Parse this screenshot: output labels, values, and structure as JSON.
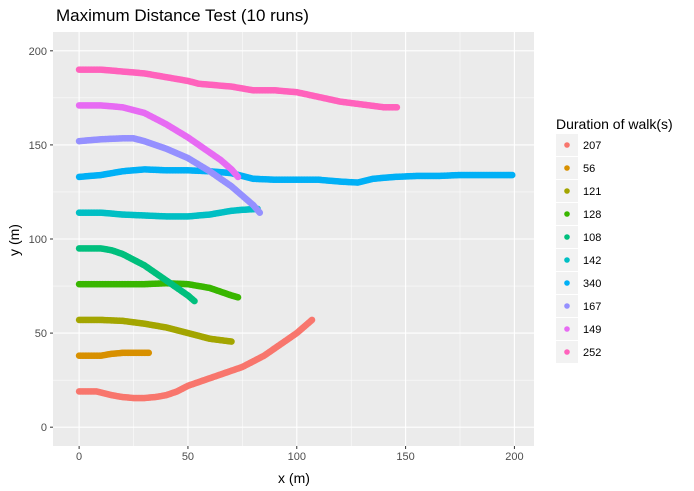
{
  "chart_data": {
    "type": "scatter",
    "title": "Maximum Distance Test (10 runs)",
    "xlabel": "x (m)",
    "ylabel": "y (m)",
    "xlim": [
      -12,
      209
    ],
    "ylim": [
      -10,
      210
    ],
    "x_ticks": [
      0,
      50,
      100,
      150,
      200
    ],
    "y_ticks": [
      0,
      50,
      100,
      150,
      200
    ],
    "grid": true,
    "legend": {
      "title": "Duration of walk(s)",
      "position": "right"
    },
    "series": [
      {
        "name": "207",
        "color": "#F8766D",
        "points": [
          [
            0,
            19
          ],
          [
            8,
            19
          ],
          [
            15,
            17
          ],
          [
            20,
            16
          ],
          [
            25,
            15.5
          ],
          [
            30,
            15.5
          ],
          [
            35,
            16
          ],
          [
            40,
            17
          ],
          [
            45,
            19
          ],
          [
            50,
            22
          ],
          [
            55,
            24
          ],
          [
            60,
            26
          ],
          [
            65,
            28
          ],
          [
            70,
            30
          ],
          [
            75,
            32
          ],
          [
            80,
            35
          ],
          [
            85,
            38
          ],
          [
            90,
            42
          ],
          [
            95,
            46
          ],
          [
            100,
            50
          ],
          [
            104,
            54
          ],
          [
            107,
            57
          ]
        ]
      },
      {
        "name": "56",
        "color": "#D89000",
        "points": [
          [
            0,
            38
          ],
          [
            5,
            38
          ],
          [
            10,
            38
          ],
          [
            15,
            39
          ],
          [
            20,
            39.5
          ],
          [
            25,
            39.5
          ],
          [
            30,
            39.5
          ],
          [
            32,
            39.5
          ]
        ]
      },
      {
        "name": "121",
        "color": "#A3A500",
        "points": [
          [
            0,
            57
          ],
          [
            10,
            57
          ],
          [
            20,
            56.5
          ],
          [
            30,
            55
          ],
          [
            40,
            53
          ],
          [
            50,
            50
          ],
          [
            60,
            47
          ],
          [
            70,
            45.5
          ]
        ]
      },
      {
        "name": "128",
        "color": "#39B600",
        "points": [
          [
            0,
            76
          ],
          [
            10,
            76
          ],
          [
            20,
            76
          ],
          [
            30,
            76
          ],
          [
            40,
            76.5
          ],
          [
            50,
            76
          ],
          [
            60,
            74
          ],
          [
            65,
            72
          ],
          [
            70,
            70
          ],
          [
            73,
            69
          ]
        ]
      },
      {
        "name": "108",
        "color": "#00BF7D",
        "points": [
          [
            0,
            95
          ],
          [
            10,
            95
          ],
          [
            15,
            94
          ],
          [
            20,
            92
          ],
          [
            25,
            89
          ],
          [
            30,
            86
          ],
          [
            35,
            82
          ],
          [
            40,
            78
          ],
          [
            45,
            74
          ],
          [
            50,
            70
          ],
          [
            53,
            67
          ]
        ]
      },
      {
        "name": "142",
        "color": "#00BFC4",
        "points": [
          [
            0,
            114
          ],
          [
            10,
            114
          ],
          [
            20,
            113
          ],
          [
            30,
            112.5
          ],
          [
            40,
            112
          ],
          [
            50,
            112
          ],
          [
            60,
            113
          ],
          [
            65,
            114
          ],
          [
            70,
            115
          ],
          [
            75,
            115.5
          ],
          [
            82,
            116
          ]
        ]
      },
      {
        "name": "340",
        "color": "#00B0F6",
        "points": [
          [
            0,
            133
          ],
          [
            10,
            134
          ],
          [
            20,
            136
          ],
          [
            30,
            137
          ],
          [
            40,
            136.5
          ],
          [
            50,
            136.5
          ],
          [
            60,
            136
          ],
          [
            70,
            135
          ],
          [
            80,
            132
          ],
          [
            90,
            131.5
          ],
          [
            100,
            131.5
          ],
          [
            110,
            131.5
          ],
          [
            120,
            130.5
          ],
          [
            128,
            130
          ],
          [
            135,
            132
          ],
          [
            145,
            133
          ],
          [
            155,
            133.5
          ],
          [
            165,
            133.5
          ],
          [
            175,
            134
          ],
          [
            185,
            134
          ],
          [
            195,
            134
          ],
          [
            199,
            134
          ]
        ]
      },
      {
        "name": "167",
        "color": "#9590FF",
        "points": [
          [
            0,
            152
          ],
          [
            10,
            153
          ],
          [
            20,
            153.5
          ],
          [
            25,
            153.5
          ],
          [
            30,
            152
          ],
          [
            40,
            148
          ],
          [
            50,
            143
          ],
          [
            60,
            136
          ],
          [
            65,
            132
          ],
          [
            70,
            128
          ],
          [
            75,
            123
          ],
          [
            80,
            118
          ],
          [
            83,
            114
          ]
        ]
      },
      {
        "name": "149",
        "color": "#E76BF3",
        "points": [
          [
            0,
            171
          ],
          [
            10,
            171
          ],
          [
            20,
            170
          ],
          [
            30,
            167
          ],
          [
            40,
            161
          ],
          [
            50,
            154
          ],
          [
            60,
            146
          ],
          [
            65,
            142
          ],
          [
            70,
            137
          ],
          [
            73,
            133
          ]
        ]
      },
      {
        "name": "252",
        "color": "#FF62BC",
        "points": [
          [
            0,
            190
          ],
          [
            10,
            190
          ],
          [
            20,
            189
          ],
          [
            30,
            188
          ],
          [
            40,
            186
          ],
          [
            50,
            184
          ],
          [
            55,
            182.5
          ],
          [
            60,
            182
          ],
          [
            70,
            181
          ],
          [
            80,
            179
          ],
          [
            90,
            179
          ],
          [
            100,
            178
          ],
          [
            110,
            175.5
          ],
          [
            120,
            173
          ],
          [
            130,
            171.5
          ],
          [
            140,
            170
          ],
          [
            146,
            170
          ]
        ]
      }
    ]
  }
}
